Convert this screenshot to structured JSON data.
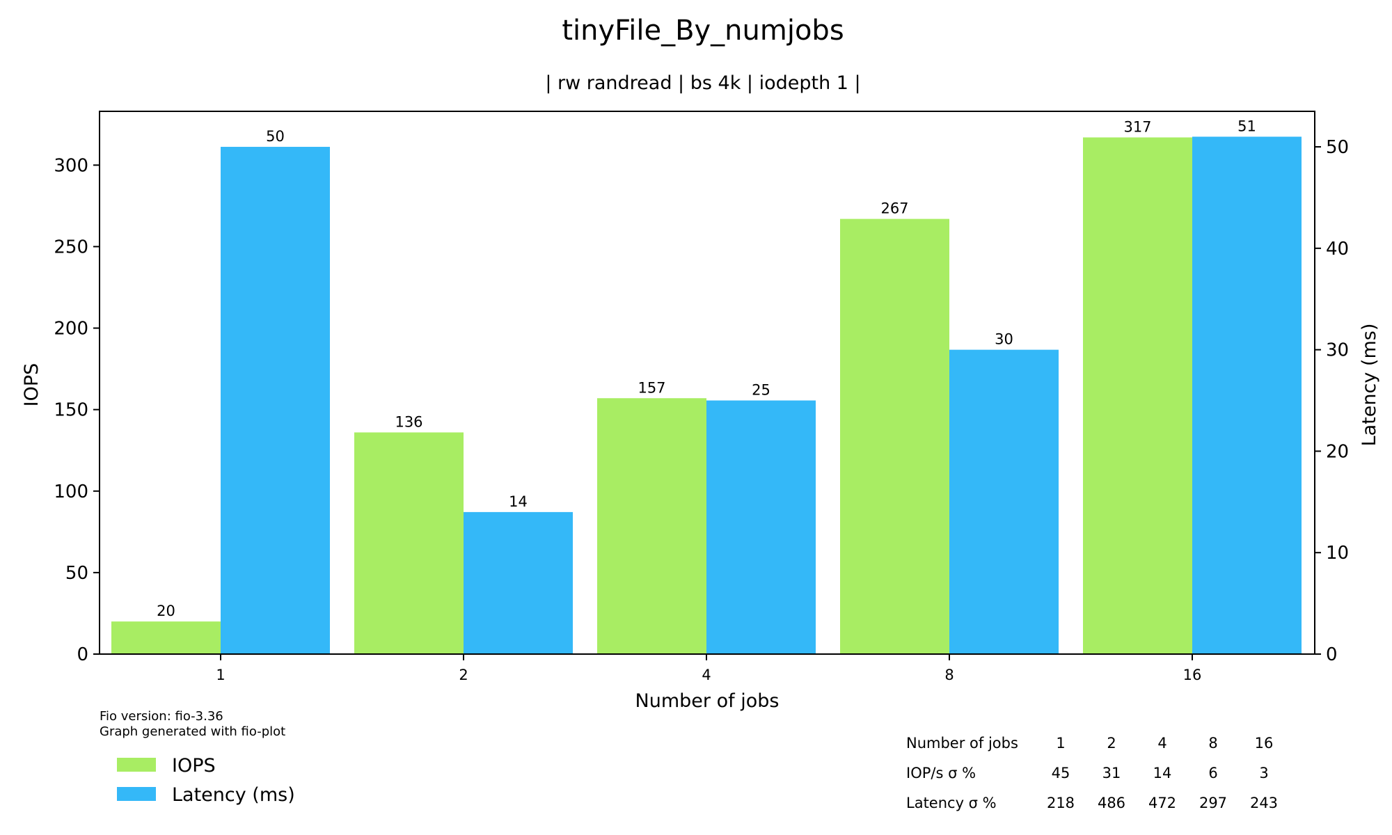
{
  "chart_data": {
    "type": "bar",
    "title": "tinyFile_By_numjobs",
    "subtitle": "| rw randread | bs 4k | iodepth 1 |",
    "xlabel": "Number of jobs",
    "ylabel": "IOPS",
    "y2label": "Latency (ms)",
    "categories": [
      "1",
      "2",
      "4",
      "8",
      "16"
    ],
    "series": [
      {
        "name": "IOPS",
        "axis": "left",
        "color": "#a8ed63",
        "values": [
          20,
          136,
          157,
          267,
          317
        ]
      },
      {
        "name": "Latency (ms)",
        "axis": "right",
        "color": "#34b8f8",
        "values": [
          50,
          14,
          25,
          30,
          51
        ]
      }
    ],
    "ylim": [
      0,
      333
    ],
    "y2lim": [
      0,
      53.5
    ],
    "yticks": [
      0,
      50,
      100,
      150,
      200,
      250,
      300
    ],
    "y2ticks": [
      0,
      10,
      20,
      30,
      40,
      50
    ],
    "grid": false,
    "legend_position": "bottom-left"
  },
  "footnote": {
    "line1": "Fio version: fio-3.36",
    "line2": "Graph generated with fio-plot"
  },
  "stats_table": {
    "rows": [
      {
        "label": "Number of jobs",
        "values": [
          "1",
          "2",
          "4",
          "8",
          "16"
        ]
      },
      {
        "label": "IOP/s σ %",
        "values": [
          "45",
          "31",
          "14",
          "6",
          "3"
        ]
      },
      {
        "label": "Latency σ %",
        "values": [
          "218",
          "486",
          "472",
          "297",
          "243"
        ]
      }
    ]
  }
}
